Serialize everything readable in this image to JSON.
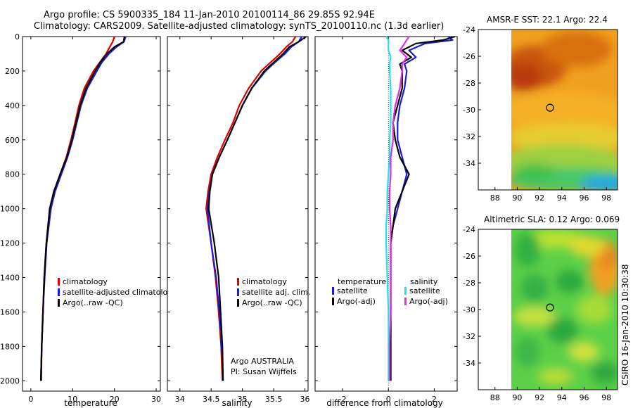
{
  "title": {
    "line1": "Argo profile: CS 5900335_184 11-Jan-2010 20100114_86 29.85S 92.94E",
    "line2": "Climatology: CARS2009. Satellite-adjusted climatology: synTS_20100110.nc (1.3d earlier)"
  },
  "credit": "CSIRO 16-Jan-2010 10:30:38",
  "colors": {
    "red": "#e00000",
    "blue": "#1a1adc",
    "black": "#000000",
    "cyan": "#22e0f0",
    "magenta": "#e030e0"
  },
  "chart_data": [
    {
      "type": "line",
      "id": "temperature",
      "xlabel": "temperature",
      "ylabel": "",
      "xlim": [
        -2,
        31
      ],
      "ylim": [
        2060,
        0
      ],
      "xticks": [
        0,
        10,
        20,
        30
      ],
      "yticks": [
        0,
        200,
        400,
        600,
        800,
        1000,
        1200,
        1400,
        1600,
        1800,
        2000
      ],
      "depth": [
        0,
        30,
        60,
        100,
        150,
        200,
        300,
        400,
        500,
        600,
        700,
        800,
        900,
        1000,
        1200,
        1400,
        1600,
        1800,
        2000
      ],
      "series": [
        {
          "name": "climatology",
          "color": "red",
          "values": [
            20.0,
            19.6,
            18.9,
            18.0,
            16.5,
            15.0,
            12.8,
            11.5,
            10.6,
            9.6,
            8.5,
            7.0,
            5.6,
            4.6,
            3.7,
            3.2,
            2.9,
            2.6,
            2.5
          ]
        },
        {
          "name": "satellite-adjusted climatology",
          "color": "blue",
          "values": [
            22.7,
            22.3,
            20.5,
            18.7,
            17.0,
            15.8,
            13.5,
            12.0,
            11.0,
            10.0,
            8.8,
            7.3,
            5.8,
            4.8,
            3.8,
            3.3,
            2.9,
            2.6,
            2.4
          ]
        },
        {
          "name": "Argo(..raw -QC)",
          "color": "black",
          "values": [
            22.4,
            22.2,
            20.0,
            18.2,
            16.6,
            15.4,
            13.2,
            11.8,
            10.8,
            9.8,
            8.6,
            7.0,
            5.5,
            4.5,
            3.7,
            3.2,
            2.9,
            2.6,
            2.4
          ]
        }
      ],
      "legend": [
        "climatology",
        "satellite-adjusted climatology",
        "Argo(..raw -QC)"
      ]
    },
    {
      "type": "line",
      "id": "salinity",
      "xlabel": "salinity",
      "xlim": [
        33.8,
        36.05
      ],
      "ylim": [
        2060,
        0
      ],
      "xticks": [
        34,
        34.5,
        35,
        35.5,
        36
      ],
      "depth": [
        0,
        30,
        60,
        100,
        150,
        200,
        300,
        400,
        500,
        600,
        700,
        800,
        900,
        1000,
        1200,
        1400,
        1600,
        1800,
        2000
      ],
      "series": [
        {
          "name": "climatology",
          "color": "red",
          "values": [
            35.85,
            35.8,
            35.7,
            35.6,
            35.45,
            35.3,
            35.1,
            34.95,
            34.85,
            34.72,
            34.6,
            34.5,
            34.45,
            34.42,
            34.5,
            34.57,
            34.62,
            34.66,
            34.68
          ]
        },
        {
          "name": "satellite adj. clim.",
          "color": "blue",
          "values": [
            35.95,
            35.9,
            35.78,
            35.68,
            35.52,
            35.37,
            35.15,
            35.0,
            34.88,
            34.76,
            34.63,
            34.52,
            34.47,
            34.44,
            34.5,
            34.58,
            34.63,
            34.67,
            34.69
          ]
        },
        {
          "name": "Argo(..raw -QC)",
          "color": "black",
          "values": [
            36.02,
            35.9,
            35.75,
            35.65,
            35.5,
            35.35,
            35.15,
            35.0,
            34.88,
            34.76,
            34.63,
            34.52,
            34.48,
            34.46,
            34.55,
            34.62,
            34.65,
            34.68,
            34.69
          ]
        }
      ],
      "legend": [
        "climatology",
        "satellite adj. clim.",
        "Argo(..raw -QC)"
      ],
      "annotation": [
        "Argo AUSTRALIA",
        "PI: Susan Wijffels"
      ]
    },
    {
      "type": "line",
      "id": "difference",
      "xlabel": "difference from climatology",
      "xlim": [
        -3.2,
        3.0
      ],
      "ylim": [
        2060,
        0
      ],
      "xticks": [
        -2,
        0,
        2
      ],
      "depth": [
        0,
        20,
        40,
        80,
        120,
        160,
        200,
        300,
        400,
        500,
        600,
        700,
        800,
        900,
        1000,
        1100,
        1200,
        1400,
        1600,
        1800,
        2000
      ],
      "series": [
        {
          "name": "temperature satellite",
          "color": "blue",
          "values": [
            2.6,
            2.8,
            1.6,
            0.9,
            1.2,
            0.7,
            0.8,
            0.7,
            0.5,
            0.4,
            0.4,
            0.6,
            0.8,
            0.6,
            0.4,
            0.2,
            0.1,
            0.1,
            0.1,
            0.1,
            0.1
          ]
        },
        {
          "name": "temperature Argo(-adj)",
          "color": "black",
          "values": [
            2.9,
            2.4,
            1.2,
            0.6,
            1.0,
            0.5,
            0.6,
            0.6,
            0.4,
            0.2,
            0.3,
            0.5,
            0.9,
            0.6,
            0.3,
            0.2,
            0.1,
            0.1,
            0.1,
            0.1,
            0.1
          ]
        },
        {
          "name": "salinity satellite",
          "color": "cyan",
          "values": [
            -0.1,
            0.0,
            0.0,
            0.0,
            0.1,
            0.05,
            0.05,
            0.1,
            0.1,
            0.1,
            0.05,
            0.05,
            0.0,
            -0.05,
            -0.05,
            -0.1,
            -0.1,
            -0.05,
            0.0,
            0.0,
            0.0
          ]
        },
        {
          "name": "salinity Argo(-adj)",
          "color": "magenta",
          "values": [
            0.9,
            0.8,
            0.7,
            0.5,
            0.8,
            0.6,
            0.6,
            0.5,
            0.3,
            0.2,
            0.2,
            0.1,
            0.1,
            0.05,
            0.05,
            0.1,
            0.1,
            0.1,
            0.1,
            0.05,
            0.05
          ]
        }
      ],
      "legend": {
        "temperature_header": "temperature",
        "salinity_header": "salinity",
        "temperature_items": [
          "satellite",
          "Argo(-adj)"
        ],
        "salinity_items": [
          "satellite",
          "Argo(-adj)"
        ]
      }
    },
    {
      "type": "heatmap",
      "id": "sst-map",
      "title": "AMSR-E SST: 22.1  Argo: 22.4",
      "xlim": [
        86.5,
        99
      ],
      "ylim": [
        -36,
        -24
      ],
      "xticks": [
        88,
        90,
        92,
        94,
        96,
        98
      ],
      "yticks": [
        -24,
        -26,
        -28,
        -30,
        -32,
        -34
      ],
      "float_position": [
        92.94,
        -29.85
      ]
    },
    {
      "type": "heatmap",
      "id": "sla-map",
      "title": "Altimetric SLA: 0.12  Argo: 0.069",
      "xlim": [
        86.5,
        99
      ],
      "ylim": [
        -36,
        -24
      ],
      "xticks": [
        88,
        90,
        92,
        94,
        96,
        98
      ],
      "yticks": [
        -24,
        -26,
        -28,
        -30,
        -32,
        -34
      ],
      "float_position": [
        92.94,
        -29.85
      ]
    }
  ]
}
